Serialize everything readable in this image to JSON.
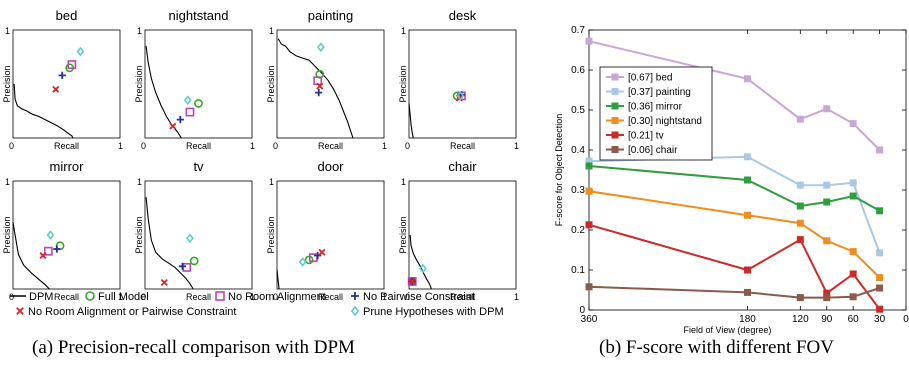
{
  "captions": {
    "left": "(a)  Precision-recall comparison with DPM",
    "right": "(b)  F-score with different FOV"
  },
  "chart_data": [
    {
      "type": "scatter",
      "xlabel": "Recall",
      "ylabel": "Precision",
      "xlim": [
        0,
        1
      ],
      "ylim": [
        0,
        1
      ],
      "ticks": {
        "zero": "0",
        "one": "1"
      },
      "legend": [
        {
          "key": "dpm",
          "label": "DPM",
          "marker": "line",
          "color": "#000000"
        },
        {
          "key": "full",
          "label": "Full Model",
          "marker": "circle",
          "color": "#33aa22"
        },
        {
          "key": "noroom",
          "label": "No Room Alignment",
          "marker": "square",
          "color": "#bb44bb"
        },
        {
          "key": "nopair",
          "label": "No Pairwise Constraint",
          "marker": "plus",
          "color": "#223399"
        },
        {
          "key": "noboth",
          "label": "No Room Alignment or Pairwise Constraint",
          "marker": "x",
          "color": "#dd2222"
        },
        {
          "key": "prune",
          "label": "Prune Hypotheses with DPM",
          "marker": "diamond",
          "color": "#55cccc"
        }
      ],
      "panels": [
        {
          "title": "bed",
          "dpm_curve": [
            [
              0.01,
              0.5
            ],
            [
              0.02,
              0.36
            ],
            [
              0.04,
              0.3
            ],
            [
              0.08,
              0.27
            ],
            [
              0.13,
              0.25
            ],
            [
              0.18,
              0.22
            ],
            [
              0.24,
              0.2
            ],
            [
              0.3,
              0.17
            ],
            [
              0.36,
              0.14
            ],
            [
              0.42,
              0.11
            ],
            [
              0.48,
              0.07
            ],
            [
              0.52,
              0.04
            ],
            [
              0.55,
              0.02
            ],
            [
              0.56,
              0.0
            ]
          ],
          "points": {
            "full": [
              0.53,
              0.65
            ],
            "noroom": [
              0.55,
              0.68
            ],
            "nopair": [
              0.46,
              0.58
            ],
            "noboth": [
              0.4,
              0.45
            ],
            "prune": [
              0.63,
              0.8
            ]
          }
        },
        {
          "title": "nightstand",
          "dpm_curve": [
            [
              0.01,
              0.85
            ],
            [
              0.03,
              0.7
            ],
            [
              0.06,
              0.55
            ],
            [
              0.1,
              0.42
            ],
            [
              0.15,
              0.3
            ],
            [
              0.2,
              0.2
            ],
            [
              0.25,
              0.12
            ],
            [
              0.3,
              0.06
            ],
            [
              0.34,
              0.0
            ]
          ],
          "points": {
            "full": [
              0.5,
              0.32
            ],
            "noroom": [
              0.42,
              0.24
            ],
            "nopair": [
              0.33,
              0.17
            ],
            "noboth": [
              0.26,
              0.11
            ],
            "prune": [
              0.4,
              0.35
            ]
          }
        },
        {
          "title": "painting",
          "dpm_curve": [
            [
              0.01,
              0.92
            ],
            [
              0.04,
              0.87
            ],
            [
              0.08,
              0.85
            ],
            [
              0.12,
              0.8
            ],
            [
              0.18,
              0.76
            ],
            [
              0.24,
              0.74
            ],
            [
              0.3,
              0.72
            ],
            [
              0.36,
              0.66
            ],
            [
              0.42,
              0.6
            ],
            [
              0.48,
              0.53
            ],
            [
              0.53,
              0.45
            ],
            [
              0.58,
              0.35
            ],
            [
              0.62,
              0.25
            ],
            [
              0.66,
              0.15
            ],
            [
              0.69,
              0.06
            ],
            [
              0.71,
              0.0
            ]
          ],
          "points": {
            "full": [
              0.4,
              0.59
            ],
            "noroom": [
              0.38,
              0.53
            ],
            "nopair": [
              0.39,
              0.42
            ],
            "noboth": [
              0.4,
              0.48
            ],
            "prune": [
              0.41,
              0.84
            ]
          }
        },
        {
          "title": "desk",
          "dpm_curve": [
            [
              0.0,
              0.32
            ],
            [
              0.01,
              0.22
            ],
            [
              0.02,
              0.12
            ],
            [
              0.03,
              0.05
            ],
            [
              0.04,
              0.0
            ]
          ],
          "points": {
            "full": [
              0.45,
              0.39
            ],
            "noroom": [
              0.49,
              0.39
            ],
            "nopair": [
              0.49,
              0.4
            ],
            "noboth": [
              0.47,
              0.37
            ],
            "prune": [
              0.48,
              0.39
            ]
          }
        },
        {
          "title": "mirror",
          "dpm_curve": [
            [
              0.0,
              0.62
            ],
            [
              0.02,
              0.5
            ],
            [
              0.05,
              0.32
            ],
            [
              0.1,
              0.22
            ],
            [
              0.17,
              0.15
            ],
            [
              0.24,
              0.09
            ],
            [
              0.3,
              0.04
            ],
            [
              0.34,
              0.0
            ]
          ],
          "points": {
            "full": [
              0.44,
              0.4
            ],
            "noroom": [
              0.33,
              0.35
            ],
            "nopair": [
              0.41,
              0.37
            ],
            "noboth": [
              0.28,
              0.31
            ],
            "prune": [
              0.35,
              0.5
            ]
          }
        },
        {
          "title": "tv",
          "dpm_curve": [
            [
              0.01,
              0.85
            ],
            [
              0.03,
              0.65
            ],
            [
              0.06,
              0.45
            ],
            [
              0.1,
              0.34
            ],
            [
              0.16,
              0.28
            ],
            [
              0.22,
              0.24
            ],
            [
              0.28,
              0.2
            ],
            [
              0.33,
              0.15
            ],
            [
              0.38,
              0.1
            ],
            [
              0.42,
              0.05
            ],
            [
              0.45,
              0.0
            ]
          ],
          "points": {
            "full": [
              0.46,
              0.26
            ],
            "noroom": [
              0.39,
              0.2
            ],
            "nopair": [
              0.35,
              0.21
            ],
            "noboth": [
              0.18,
              0.06
            ],
            "prune": [
              0.42,
              0.47
            ]
          }
        },
        {
          "title": "door",
          "dpm_curve": [
            [
              0.0,
              0.18
            ],
            [
              0.01,
              0.08
            ],
            [
              0.02,
              0.0
            ]
          ],
          "points": {
            "full": [
              0.3,
              0.27
            ],
            "noroom": [
              0.34,
              0.29
            ],
            "nopair": [
              0.38,
              0.31
            ],
            "noboth": [
              0.42,
              0.34
            ],
            "prune": [
              0.24,
              0.25
            ]
          }
        },
        {
          "title": "chair",
          "dpm_curve": [
            [
              0.01,
              0.5
            ],
            [
              0.02,
              0.4
            ],
            [
              0.04,
              0.33
            ],
            [
              0.07,
              0.27
            ],
            [
              0.1,
              0.22
            ],
            [
              0.13,
              0.16
            ],
            [
              0.16,
              0.1
            ],
            [
              0.19,
              0.05
            ],
            [
              0.21,
              0.0
            ]
          ],
          "points": {
            "full": [
              0.03,
              0.07
            ],
            "noroom": [
              0.03,
              0.07
            ],
            "nopair": [
              0.03,
              0.07
            ],
            "noboth": [
              0.03,
              0.07
            ],
            "prune": [
              0.13,
              0.19
            ]
          }
        }
      ]
    },
    {
      "type": "line",
      "xlabel": "Field of View (degree)",
      "ylabel": "F-score for Object Detection",
      "x": [
        360,
        180,
        120,
        90,
        60,
        30
      ],
      "xticks": [
        "360",
        "180",
        "120",
        "90",
        "60",
        "30",
        "0"
      ],
      "xlim": [
        360,
        0
      ],
      "ylim": [
        0,
        0.7
      ],
      "yticks": [
        "0",
        "0.1",
        "0.2",
        "0.3",
        "0.4",
        "0.5",
        "0.6",
        "0.7"
      ],
      "legend_position": "top-left",
      "series": [
        {
          "name": "[0.67] bed",
          "color": "#c7a7d6",
          "values": [
            0.672,
            0.578,
            0.477,
            0.503,
            0.466,
            0.4
          ]
        },
        {
          "name": "[0.37] painting",
          "color": "#a8c8e8",
          "values": [
            0.372,
            0.383,
            0.312,
            0.312,
            0.318,
            0.143
          ]
        },
        {
          "name": "[0.36] mirror",
          "color": "#2e9e3e",
          "values": [
            0.36,
            0.325,
            0.26,
            0.27,
            0.285,
            0.248
          ]
        },
        {
          "name": "[0.30] nightstand",
          "color": "#f28c1c",
          "values": [
            0.297,
            0.237,
            0.217,
            0.173,
            0.146,
            0.081
          ]
        },
        {
          "name": "[0.21] tv",
          "color": "#d02828",
          "values": [
            0.213,
            0.1,
            0.176,
            0.042,
            0.09,
            0.002
          ]
        },
        {
          "name": "[0.06] chair",
          "color": "#8b5a4a",
          "values": [
            0.058,
            0.044,
            0.031,
            0.031,
            0.033,
            0.055
          ]
        }
      ]
    }
  ]
}
